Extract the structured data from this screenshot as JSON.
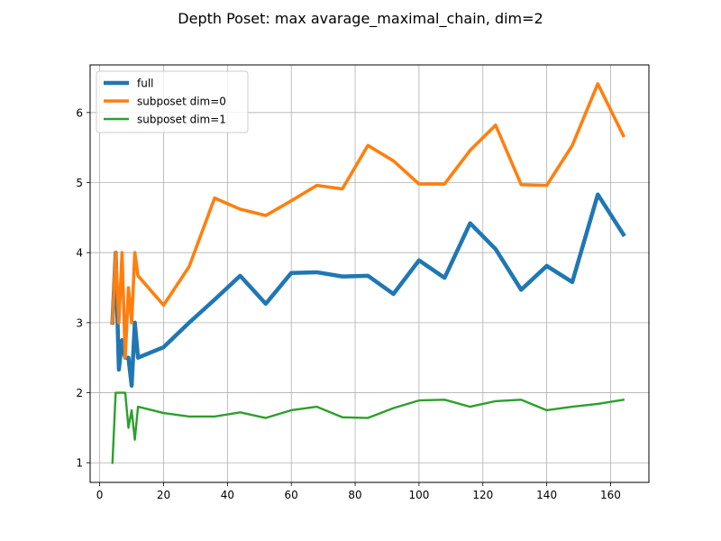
{
  "chart_data": {
    "type": "line",
    "title": "Depth Poset: max avarage_maximal_chain, dim=2",
    "xlabel": "",
    "ylabel": "",
    "xlim": [
      -3,
      172
    ],
    "ylim": [
      0.72,
      6.68
    ],
    "xticks": [
      0,
      20,
      40,
      60,
      80,
      100,
      120,
      140,
      160
    ],
    "yticks": [
      1,
      2,
      3,
      4,
      5,
      6
    ],
    "grid": true,
    "legend": "top-left",
    "series": [
      {
        "name": "full",
        "color": "#1f77b4",
        "width": "bold",
        "points": [
          [
            4,
            3.0
          ],
          [
            5,
            4.0
          ],
          [
            6,
            2.33
          ],
          [
            7,
            2.75
          ],
          [
            8,
            2.5
          ],
          [
            9,
            2.5
          ],
          [
            10,
            2.1
          ],
          [
            11,
            3.0
          ],
          [
            12,
            2.5
          ],
          [
            20,
            2.65
          ],
          [
            28,
            3.0
          ],
          [
            36,
            3.33
          ],
          [
            44,
            3.67
          ],
          [
            52,
            3.27
          ],
          [
            60,
            3.71
          ],
          [
            68,
            3.72
          ],
          [
            76,
            3.66
          ],
          [
            84,
            3.67
          ],
          [
            92,
            3.41
          ],
          [
            100,
            3.89
          ],
          [
            108,
            3.64
          ],
          [
            116,
            4.42
          ],
          [
            124,
            4.05
          ],
          [
            132,
            3.47
          ],
          [
            140,
            3.81
          ],
          [
            148,
            3.58
          ],
          [
            156,
            4.83
          ],
          [
            164,
            4.26
          ]
        ]
      },
      {
        "name": "subposet dim=0",
        "color": "#ff7f0e",
        "width": "medium",
        "points": [
          [
            4,
            3.0
          ],
          [
            5,
            4.0
          ],
          [
            6,
            3.0
          ],
          [
            7,
            4.0
          ],
          [
            8,
            2.5
          ],
          [
            9,
            3.5
          ],
          [
            10,
            3.0
          ],
          [
            11,
            4.0
          ],
          [
            12,
            3.67
          ],
          [
            20,
            3.25
          ],
          [
            28,
            3.8
          ],
          [
            36,
            4.78
          ],
          [
            44,
            4.62
          ],
          [
            52,
            4.53
          ],
          [
            60,
            4.74
          ],
          [
            68,
            4.96
          ],
          [
            76,
            4.91
          ],
          [
            84,
            5.53
          ],
          [
            92,
            5.31
          ],
          [
            100,
            4.98
          ],
          [
            108,
            4.98
          ],
          [
            116,
            5.46
          ],
          [
            124,
            5.82
          ],
          [
            132,
            4.97
          ],
          [
            140,
            4.96
          ],
          [
            148,
            5.53
          ],
          [
            156,
            6.41
          ],
          [
            164,
            5.67
          ]
        ]
      },
      {
        "name": "subposet dim=1",
        "color": "#2ca02c",
        "width": "thin",
        "points": [
          [
            4,
            1.0
          ],
          [
            5,
            2.0
          ],
          [
            6,
            2.0
          ],
          [
            7,
            2.0
          ],
          [
            8,
            2.0
          ],
          [
            9,
            1.5
          ],
          [
            10,
            1.75
          ],
          [
            11,
            1.33
          ],
          [
            12,
            1.8
          ],
          [
            20,
            1.71
          ],
          [
            28,
            1.66
          ],
          [
            36,
            1.66
          ],
          [
            44,
            1.72
          ],
          [
            52,
            1.64
          ],
          [
            60,
            1.75
          ],
          [
            68,
            1.8
          ],
          [
            76,
            1.65
          ],
          [
            84,
            1.64
          ],
          [
            92,
            1.78
          ],
          [
            100,
            1.89
          ],
          [
            108,
            1.9
          ],
          [
            116,
            1.8
          ],
          [
            124,
            1.88
          ],
          [
            132,
            1.9
          ],
          [
            140,
            1.75
          ],
          [
            148,
            1.8
          ],
          [
            156,
            1.84
          ],
          [
            164,
            1.9
          ]
        ]
      }
    ]
  }
}
